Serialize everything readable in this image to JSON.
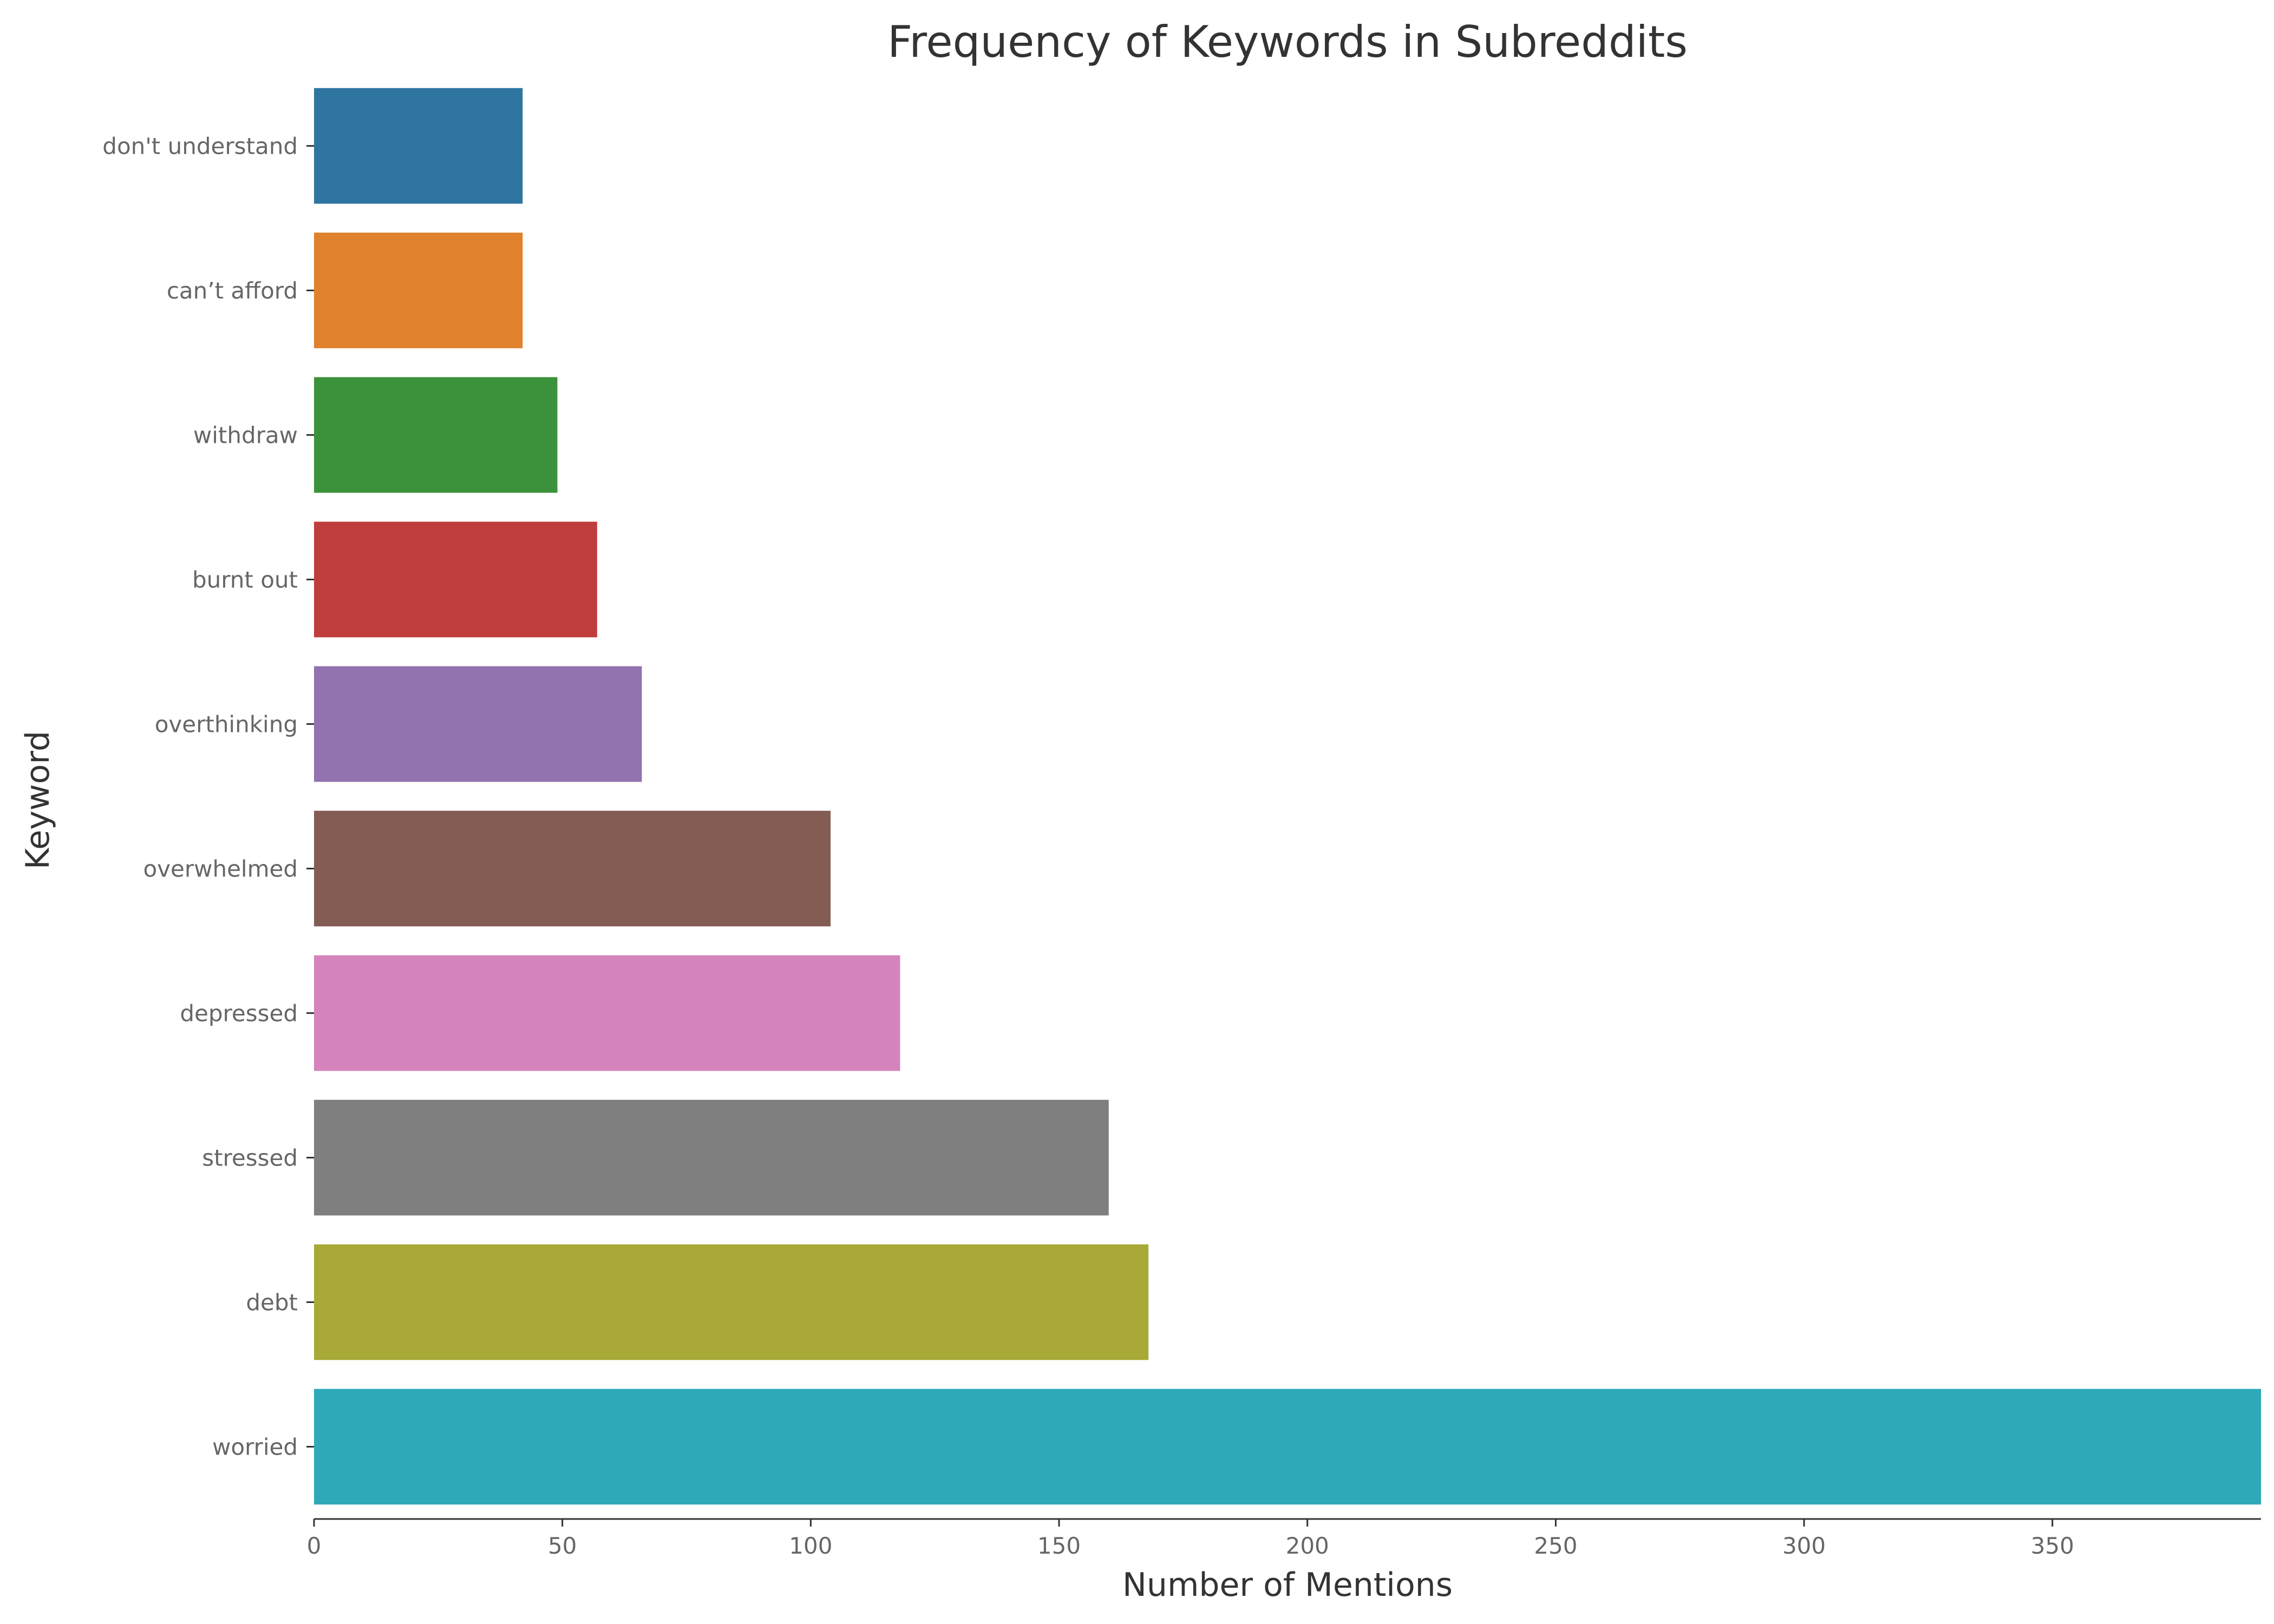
{
  "chart_data": {
    "type": "bar",
    "orientation": "horizontal",
    "title": "Frequency of Keywords in Subreddits",
    "xlabel": "Number of Mentions",
    "ylabel": "Keyword",
    "categories": [
      "don't understand",
      "can’t afford",
      "withdraw",
      "burnt out",
      "overthinking",
      "overwhelmed",
      "depressed",
      "stressed",
      "debt",
      "worried"
    ],
    "values": [
      42,
      42,
      49,
      57,
      66,
      104,
      118,
      160,
      168,
      392
    ],
    "colors": [
      "#2e75a2",
      "#e0812d",
      "#3b923b",
      "#c03d3e",
      "#9372b0",
      "#835c53",
      "#d584bd",
      "#7f7f7f",
      "#a8a937",
      "#2da9b8"
    ],
    "xlim": [
      0,
      392
    ],
    "xticks": [
      0,
      50,
      100,
      150,
      200,
      250,
      300,
      350
    ],
    "grid": false,
    "legend": "none"
  }
}
